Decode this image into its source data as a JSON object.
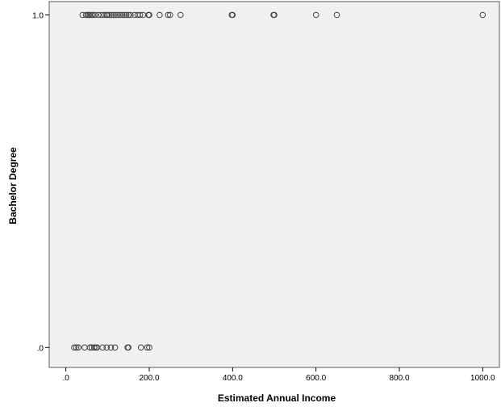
{
  "chart_data": {
    "type": "scatter",
    "title": "",
    "xlabel": "Estimated Annual Income",
    "ylabel": "Bachelor Degree",
    "xlim": [
      -40,
      1040
    ],
    "ylim": [
      -0.06,
      1.04
    ],
    "x_ticks": [
      0,
      200,
      400,
      600,
      800,
      1000
    ],
    "x_tick_labels": [
      ".0",
      "200.0",
      "400.0",
      "600.0",
      "800.0",
      "1000.0"
    ],
    "y_ticks": [
      0,
      1
    ],
    "y_tick_labels": [
      ".0",
      "1.0"
    ],
    "grid": false,
    "legend": "none",
    "point_color": "#444444",
    "background_color": "#f0f0f0",
    "series": [
      {
        "points": [
          {
            "x": 40,
            "y": 1
          },
          {
            "x": 48,
            "y": 1
          },
          {
            "x": 52,
            "y": 1
          },
          {
            "x": 55,
            "y": 1
          },
          {
            "x": 58,
            "y": 1
          },
          {
            "x": 62,
            "y": 1
          },
          {
            "x": 65,
            "y": 1
          },
          {
            "x": 70,
            "y": 1
          },
          {
            "x": 78,
            "y": 1
          },
          {
            "x": 85,
            "y": 1
          },
          {
            "x": 92,
            "y": 1
          },
          {
            "x": 98,
            "y": 1
          },
          {
            "x": 100,
            "y": 1
          },
          {
            "x": 105,
            "y": 1
          },
          {
            "x": 110,
            "y": 1
          },
          {
            "x": 115,
            "y": 1
          },
          {
            "x": 120,
            "y": 1
          },
          {
            "x": 125,
            "y": 1
          },
          {
            "x": 130,
            "y": 1
          },
          {
            "x": 135,
            "y": 1
          },
          {
            "x": 140,
            "y": 1
          },
          {
            "x": 145,
            "y": 1
          },
          {
            "x": 150,
            "y": 1
          },
          {
            "x": 155,
            "y": 1
          },
          {
            "x": 165,
            "y": 1
          },
          {
            "x": 172,
            "y": 1
          },
          {
            "x": 178,
            "y": 1
          },
          {
            "x": 185,
            "y": 1
          },
          {
            "x": 198,
            "y": 1
          },
          {
            "x": 200,
            "y": 1
          },
          {
            "x": 225,
            "y": 1
          },
          {
            "x": 245,
            "y": 1
          },
          {
            "x": 250,
            "y": 1
          },
          {
            "x": 275,
            "y": 1
          },
          {
            "x": 398,
            "y": 1
          },
          {
            "x": 400,
            "y": 1
          },
          {
            "x": 498,
            "y": 1
          },
          {
            "x": 500,
            "y": 1
          },
          {
            "x": 600,
            "y": 1
          },
          {
            "x": 650,
            "y": 1
          },
          {
            "x": 1000,
            "y": 1
          },
          {
            "x": 20,
            "y": 0
          },
          {
            "x": 25,
            "y": 0
          },
          {
            "x": 30,
            "y": 0
          },
          {
            "x": 45,
            "y": 0
          },
          {
            "x": 58,
            "y": 0
          },
          {
            "x": 62,
            "y": 0
          },
          {
            "x": 68,
            "y": 0
          },
          {
            "x": 72,
            "y": 0
          },
          {
            "x": 75,
            "y": 0
          },
          {
            "x": 88,
            "y": 0
          },
          {
            "x": 98,
            "y": 0
          },
          {
            "x": 108,
            "y": 0
          },
          {
            "x": 118,
            "y": 0
          },
          {
            "x": 148,
            "y": 0
          },
          {
            "x": 150,
            "y": 0
          },
          {
            "x": 180,
            "y": 0
          },
          {
            "x": 195,
            "y": 0
          },
          {
            "x": 200,
            "y": 0
          }
        ]
      }
    ]
  }
}
